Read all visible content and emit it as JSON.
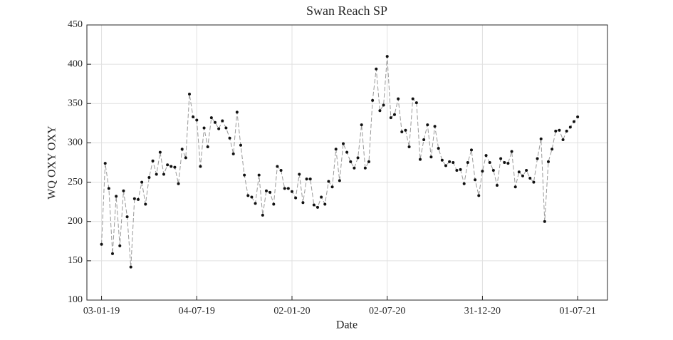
{
  "chart_data": {
    "type": "line",
    "title": "Swan Reach SP",
    "xlabel": "Date",
    "ylabel": "WQ OXY OXY",
    "x": [
      "2019-01-03",
      "2019-01-10",
      "2019-01-17",
      "2019-01-24",
      "2019-01-31",
      "2019-02-07",
      "2019-02-14",
      "2019-02-21",
      "2019-02-28",
      "2019-03-07",
      "2019-03-14",
      "2019-03-21",
      "2019-03-28",
      "2019-04-04",
      "2019-04-11",
      "2019-04-18",
      "2019-04-25",
      "2019-05-02",
      "2019-05-09",
      "2019-05-16",
      "2019-05-23",
      "2019-05-30",
      "2019-06-06",
      "2019-06-13",
      "2019-06-20",
      "2019-06-27",
      "2019-07-04",
      "2019-07-11",
      "2019-07-18",
      "2019-07-25",
      "2019-08-01",
      "2019-08-08",
      "2019-08-15",
      "2019-08-22",
      "2019-08-29",
      "2019-09-05",
      "2019-09-12",
      "2019-09-19",
      "2019-09-26",
      "2019-10-03",
      "2019-10-10",
      "2019-10-17",
      "2019-10-24",
      "2019-10-31",
      "2019-11-07",
      "2019-11-14",
      "2019-11-21",
      "2019-11-28",
      "2019-12-05",
      "2019-12-12",
      "2019-12-19",
      "2019-12-26",
      "2020-01-02",
      "2020-01-09",
      "2020-01-16",
      "2020-01-23",
      "2020-01-30",
      "2020-02-06",
      "2020-02-13",
      "2020-02-20",
      "2020-02-27",
      "2020-03-05",
      "2020-03-12",
      "2020-03-19",
      "2020-03-26",
      "2020-04-02",
      "2020-04-09",
      "2020-04-16",
      "2020-04-23",
      "2020-04-30",
      "2020-05-07",
      "2020-05-14",
      "2020-05-21",
      "2020-05-28",
      "2020-06-04",
      "2020-06-11",
      "2020-06-18",
      "2020-06-25",
      "2020-07-02",
      "2020-07-09",
      "2020-07-16",
      "2020-07-23",
      "2020-07-30",
      "2020-08-06",
      "2020-08-13",
      "2020-08-20",
      "2020-08-27",
      "2020-09-03",
      "2020-09-10",
      "2020-09-17",
      "2020-09-24",
      "2020-10-01",
      "2020-10-08",
      "2020-10-15",
      "2020-10-22",
      "2020-10-29",
      "2020-11-05",
      "2020-11-12",
      "2020-11-19",
      "2020-11-26",
      "2020-12-03",
      "2020-12-10",
      "2020-12-17",
      "2020-12-24",
      "2020-12-31",
      "2021-01-07",
      "2021-01-14",
      "2021-01-21",
      "2021-01-28",
      "2021-02-04",
      "2021-02-11",
      "2021-02-18",
      "2021-02-25",
      "2021-03-04",
      "2021-03-11",
      "2021-03-18",
      "2021-03-25",
      "2021-04-01",
      "2021-04-08",
      "2021-04-15",
      "2021-04-22",
      "2021-04-29",
      "2021-05-06",
      "2021-05-13",
      "2021-05-20",
      "2021-05-27",
      "2021-06-03",
      "2021-06-10",
      "2021-06-17",
      "2021-06-24",
      "2021-07-01"
    ],
    "series": [
      {
        "color": "#999999",
        "values": [
          171,
          274,
          242,
          159,
          232,
          169,
          239,
          206,
          142,
          229,
          228,
          250,
          222,
          256,
          277,
          260,
          288,
          260,
          272,
          270,
          269,
          248,
          292,
          281,
          362,
          333,
          329,
          270,
          319,
          295,
          332,
          326,
          318,
          328,
          319,
          306,
          286,
          339,
          297,
          259,
          233,
          231,
          223,
          259,
          208,
          239,
          237,
          222,
          270,
          265,
          242,
          242,
          238,
          230,
          260,
          224,
          254,
          254,
          221,
          218,
          231,
          222,
          251,
          244,
          292,
          252,
          299,
          288,
          276,
          268,
          281,
          323,
          268,
          276,
          354,
          394,
          341,
          348,
          410,
          332,
          336,
          356,
          314,
          316,
          295,
          356,
          351,
          279,
          304,
          323,
          282,
          321,
          293,
          278,
          271,
          276,
          275,
          265,
          266,
          248,
          275,
          291,
          253,
          233,
          264,
          284,
          275,
          265,
          246,
          280,
          275,
          274,
          289,
          244,
          263,
          258,
          265,
          255,
          250,
          280,
          305,
          200,
          276,
          292,
          315,
          316,
          304,
          315,
          320,
          327,
          333
        ]
      }
    ],
    "xlim": [
      "2018-12-06",
      "2021-08-27"
    ],
    "xticks": [
      {
        "value": "2019-01-03",
        "label": "03-01-19"
      },
      {
        "value": "2019-07-04",
        "label": "04-07-19"
      },
      {
        "value": "2020-01-02",
        "label": "02-01-20"
      },
      {
        "value": "2020-07-02",
        "label": "02-07-20"
      },
      {
        "value": "2020-12-31",
        "label": "31-12-20"
      },
      {
        "value": "2021-07-01",
        "label": "01-07-21"
      }
    ],
    "ylim": [
      100,
      450
    ],
    "yticks": [
      100,
      150,
      200,
      250,
      300,
      350,
      400,
      450
    ],
    "grid": true,
    "marker_color": "#111111"
  }
}
